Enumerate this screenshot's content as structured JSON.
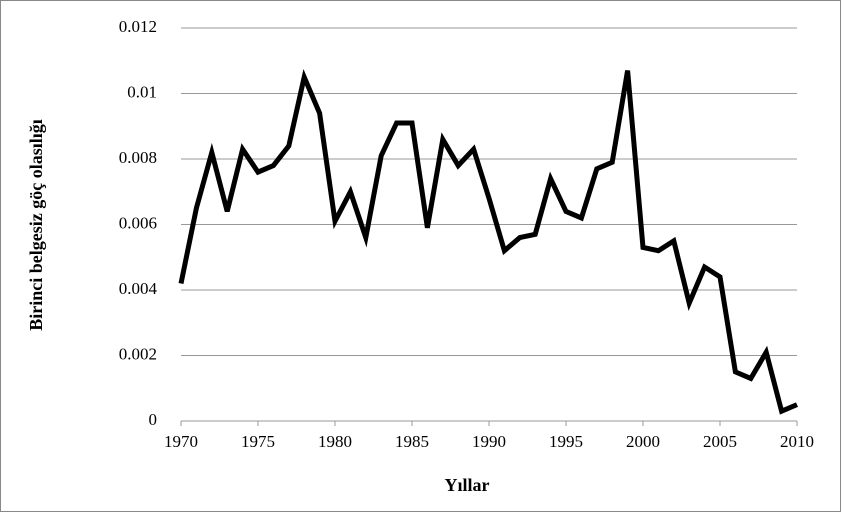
{
  "chart_data": {
    "type": "line",
    "xlabel": "Yıllar",
    "ylabel": "Birinci belgesiz göç olasılığı",
    "x": [
      1970,
      1971,
      1972,
      1973,
      1974,
      1975,
      1976,
      1977,
      1978,
      1979,
      1980,
      1981,
      1982,
      1983,
      1984,
      1985,
      1986,
      1987,
      1988,
      1989,
      1990,
      1991,
      1992,
      1993,
      1994,
      1995,
      1996,
      1997,
      1998,
      1999,
      2000,
      2001,
      2002,
      2003,
      2004,
      2005,
      2006,
      2007,
      2008,
      2009,
      2010
    ],
    "series": [
      {
        "color": "#000000",
        "values": [
          0.0042,
          0.0065,
          0.0082,
          0.0064,
          0.0083,
          0.0076,
          0.0078,
          0.0084,
          0.0105,
          0.0094,
          0.0061,
          0.007,
          0.0056,
          0.0081,
          0.0091,
          0.0091,
          0.0059,
          0.0086,
          0.0078,
          0.0083,
          0.0068,
          0.0052,
          0.0056,
          0.0057,
          0.0074,
          0.0064,
          0.0062,
          0.0077,
          0.0079,
          0.0107,
          0.0053,
          0.0052,
          0.0055,
          0.0036,
          0.0047,
          0.0044,
          0.0015,
          0.0013,
          0.0021,
          0.0003,
          0.0005
        ]
      }
    ],
    "xlim": [
      1970,
      2010
    ],
    "xticks": [
      1970,
      1975,
      1980,
      1985,
      1990,
      1995,
      2000,
      2005,
      2010
    ],
    "ylim": [
      0,
      0.012
    ],
    "yticks": [
      0,
      0.002,
      0.004,
      0.006,
      0.008,
      0.01,
      0.012
    ],
    "grid": true
  }
}
